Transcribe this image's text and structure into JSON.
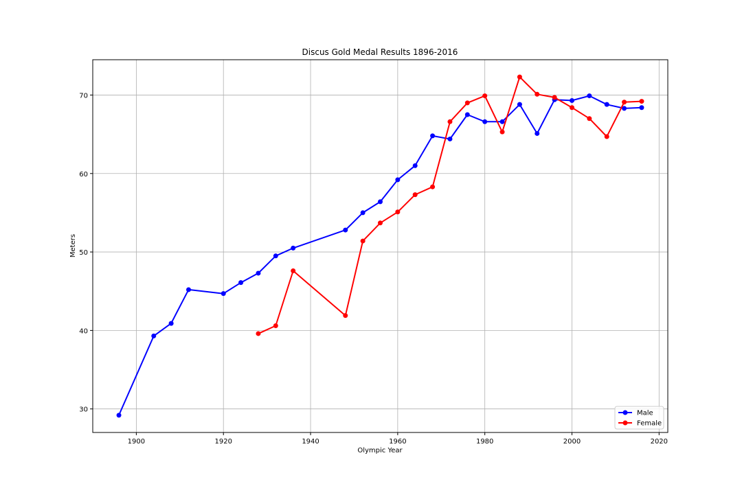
{
  "chart_data": {
    "type": "line",
    "title": "Discus Gold Medal Results 1896-2016",
    "xlabel": "Olympic Year",
    "ylabel": "Meters",
    "xlim": [
      1890,
      2022
    ],
    "ylim": [
      27,
      74.5
    ],
    "xticks": [
      1900,
      1920,
      1940,
      1960,
      1980,
      2000,
      2020
    ],
    "yticks": [
      30,
      40,
      50,
      60,
      70
    ],
    "grid": true,
    "legend_position": "lower-right",
    "series": [
      {
        "name": "Male",
        "color": "#0000ff",
        "x": [
          1896,
          1904,
          1908,
          1912,
          1920,
          1924,
          1928,
          1932,
          1936,
          1948,
          1952,
          1956,
          1960,
          1964,
          1968,
          1972,
          1976,
          1980,
          1984,
          1988,
          1992,
          1996,
          2000,
          2004,
          2008,
          2012,
          2016
        ],
        "y": [
          29.2,
          39.3,
          40.9,
          45.2,
          44.7,
          46.1,
          47.3,
          49.5,
          50.5,
          52.8,
          55.0,
          56.4,
          59.2,
          61.0,
          64.8,
          64.4,
          67.5,
          66.6,
          66.6,
          68.8,
          65.1,
          69.4,
          69.3,
          69.9,
          68.8,
          68.3,
          68.4
        ]
      },
      {
        "name": "Female",
        "color": "#ff0000",
        "x": [
          1928,
          1932,
          1936,
          1948,
          1952,
          1956,
          1960,
          1964,
          1968,
          1972,
          1976,
          1980,
          1984,
          1988,
          1992,
          1996,
          2000,
          2004,
          2008,
          2012,
          2016
        ],
        "y": [
          39.6,
          40.6,
          47.6,
          41.9,
          51.4,
          53.7,
          55.1,
          57.3,
          58.3,
          66.6,
          69.0,
          69.9,
          65.3,
          72.3,
          70.1,
          69.7,
          68.4,
          67.0,
          64.7,
          69.1,
          69.2
        ]
      }
    ]
  }
}
